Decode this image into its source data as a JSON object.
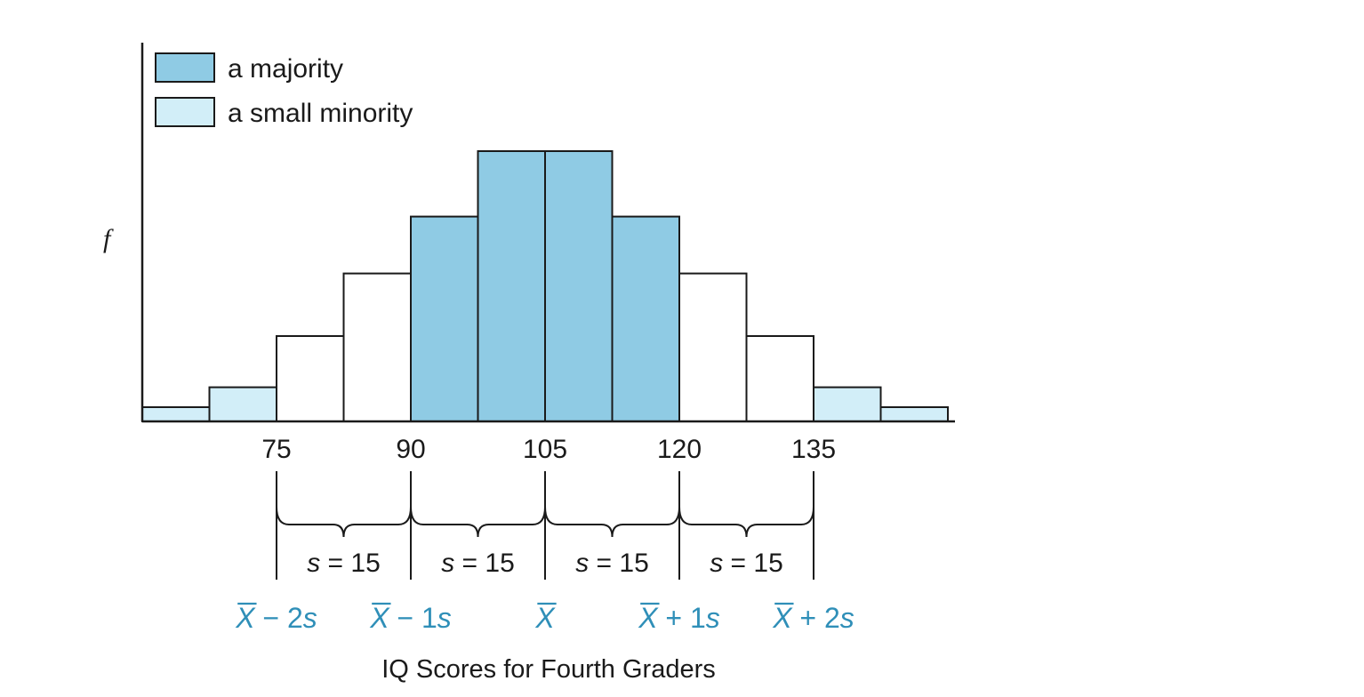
{
  "chart_data": {
    "type": "bar",
    "title": "",
    "xlabel": "IQ Scores for Fourth Graders",
    "ylabel": "f",
    "grid": false,
    "legend_position": "top-left",
    "legend": [
      {
        "label": "a majority",
        "color": "#8fcbe4"
      },
      {
        "label": "a small minority",
        "color": "#d2eef8"
      }
    ],
    "bin_width": 7.5,
    "x_range": [
      60,
      150
    ],
    "y_range": [
      0,
      12
    ],
    "x_ticks": [
      75,
      90,
      105,
      120,
      135
    ],
    "bars": [
      {
        "start": 60,
        "end": 67.5,
        "value": 0.5,
        "group": "a small minority"
      },
      {
        "start": 67.5,
        "end": 75,
        "value": 1.2,
        "group": "a small minority"
      },
      {
        "start": 75,
        "end": 82.5,
        "value": 3.0,
        "group": ""
      },
      {
        "start": 82.5,
        "end": 90,
        "value": 5.2,
        "group": ""
      },
      {
        "start": 90,
        "end": 97.5,
        "value": 7.2,
        "group": "a majority"
      },
      {
        "start": 97.5,
        "end": 105,
        "value": 9.5,
        "group": "a majority"
      },
      {
        "start": 105,
        "end": 112.5,
        "value": 9.5,
        "group": "a majority"
      },
      {
        "start": 112.5,
        "end": 120,
        "value": 7.2,
        "group": "a majority"
      },
      {
        "start": 120,
        "end": 127.5,
        "value": 5.2,
        "group": ""
      },
      {
        "start": 127.5,
        "end": 135,
        "value": 3.0,
        "group": ""
      },
      {
        "start": 135,
        "end": 142.5,
        "value": 1.2,
        "group": "a small minority"
      },
      {
        "start": 142.5,
        "end": 150,
        "value": 0.5,
        "group": "a small minority"
      }
    ],
    "sd_labels": {
      "symbol": "s",
      "equals": " = 15",
      "segments": [
        {
          "from": 75,
          "to": 90
        },
        {
          "from": 90,
          "to": 105
        },
        {
          "from": 105,
          "to": 120
        },
        {
          "from": 120,
          "to": 135
        }
      ]
    },
    "mean_labels": [
      {
        "at": 75,
        "text": "− 2s"
      },
      {
        "at": 90,
        "text": "− 1s"
      },
      {
        "at": 105,
        "text": ""
      },
      {
        "at": 120,
        "text": "+ 1s"
      },
      {
        "at": 135,
        "text": "+ 2s"
      }
    ],
    "mean_symbol": "X",
    "colors": {
      "majority": "#8fcbe4",
      "minority": "#d2eef8",
      "none": "#ffffff",
      "outline": "#1a1a1a",
      "mean_text": "#2f8fb8"
    }
  }
}
